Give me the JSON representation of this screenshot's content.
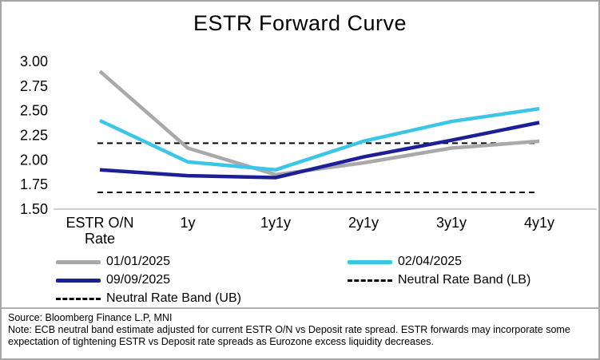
{
  "title": "ESTR Forward Curve",
  "chart_data": {
    "type": "line",
    "categories": [
      "ESTR O/N\nRate",
      "1y",
      "1y1y",
      "2y1y",
      "3y1y",
      "4y1y"
    ],
    "series": [
      {
        "name": "01/01/2025",
        "color": "#a9a9a9",
        "style": "solid",
        "values": [
          2.9,
          2.12,
          1.85,
          1.97,
          2.12,
          2.19
        ]
      },
      {
        "name": "02/04/2025",
        "color": "#3bc6e8",
        "style": "solid",
        "values": [
          2.4,
          1.98,
          1.9,
          2.19,
          2.39,
          2.52
        ]
      },
      {
        "name": "09/09/2025",
        "color": "#1c1f96",
        "style": "solid",
        "values": [
          1.9,
          1.84,
          1.82,
          2.03,
          2.2,
          2.38
        ]
      },
      {
        "name": "Neutral Rate Band (UB)",
        "color": "#000000",
        "style": "dashed",
        "values": [
          2.17,
          2.17,
          2.17,
          2.17,
          2.17,
          2.17
        ]
      },
      {
        "name": "Neutral Rate Band (LB)",
        "color": "#000000",
        "style": "dashed",
        "values": [
          1.67,
          1.67,
          1.67,
          1.67,
          1.67,
          1.67
        ]
      }
    ],
    "ylim": [
      1.5,
      3.0
    ],
    "yticks": [
      3.0,
      2.75,
      2.5,
      2.25,
      2.0,
      1.75,
      1.5
    ],
    "grid": false,
    "legend_position": "bottom",
    "axis_color": "#bfbfbf"
  },
  "legend": {
    "items": [
      {
        "label": "01/01/2025",
        "color": "#a9a9a9",
        "style": "solid"
      },
      {
        "label": "02/04/2025",
        "color": "#3bc6e8",
        "style": "solid"
      },
      {
        "label": "09/09/2025",
        "color": "#1c1f96",
        "style": "solid"
      },
      {
        "label": "Neutral Rate Band (LB)",
        "color": "#000000",
        "style": "dashed"
      },
      {
        "label": "Neutral Rate Band (UB)",
        "color": "#000000",
        "style": "dashed"
      }
    ]
  },
  "footer": {
    "source": "Source: Bloomberg Finance L.P, MNI",
    "note": "Note: ECB neutral band estimate adjusted for current ESTR O/N vs Deposit rate spread. ESTR forwards may incorporate some expectation of tightening ESTR vs Deposit rate spreads as Eurozone excess liquidity decreases."
  }
}
